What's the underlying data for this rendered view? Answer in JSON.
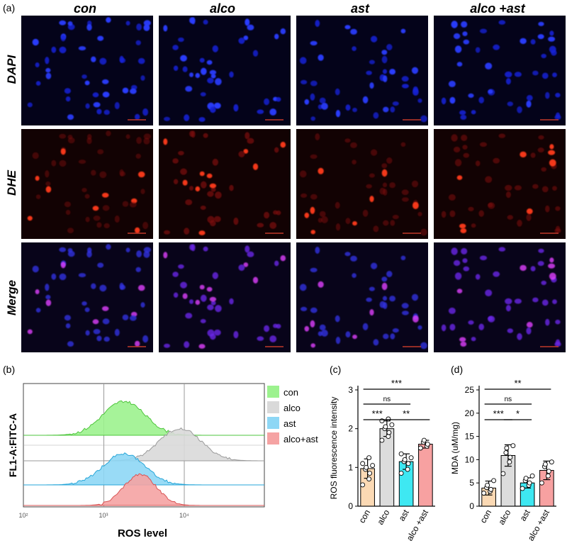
{
  "panel_a": {
    "label": "(a)",
    "columns": [
      "con",
      "alco",
      "ast",
      "alco +ast"
    ],
    "rows": [
      "DAPI",
      "DHE",
      "Merge"
    ]
  },
  "panel_b": {
    "label": "(b)",
    "ylabel": "FL1-A:FITC-A",
    "xlabel": "ROS level",
    "ticks": [
      "10²",
      "10³",
      "10⁴"
    ],
    "legend": [
      {
        "name": "con",
        "color": "#9cf28e"
      },
      {
        "name": "alco",
        "color": "#d9d9d9"
      },
      {
        "name": "ast",
        "color": "#8ed7f5"
      },
      {
        "name": "alco+ast",
        "color": "#f5a3a3"
      }
    ],
    "peaks_log10": [
      3.25,
      3.95,
      3.25,
      3.45
    ]
  },
  "chart_data": [
    {
      "type": "bar",
      "panel_label": "(c)",
      "title": "",
      "ylabel": "ROS fluorescence intensity",
      "categories": [
        "con",
        "alco",
        "ast",
        "alco +ast"
      ],
      "values": [
        0.97,
        2.0,
        1.15,
        1.6
      ],
      "errors": [
        0.25,
        0.2,
        0.2,
        0.1
      ],
      "colors": [
        "#fbd9b4",
        "#dcdcdc",
        "#3ee8f2",
        "#f7a1a1"
      ],
      "ylim": [
        0,
        3
      ],
      "yticks": [
        0,
        1,
        2,
        3
      ],
      "points": [
        [
          0.55,
          0.7,
          0.85,
          0.95,
          1.0,
          1.05,
          1.1,
          1.25
        ],
        [
          1.7,
          1.8,
          1.9,
          2.0,
          2.05,
          2.1,
          2.2,
          2.25
        ],
        [
          0.85,
          0.95,
          1.1,
          1.15,
          1.2,
          1.25,
          1.35
        ],
        [
          1.5,
          1.55,
          1.6,
          1.65,
          1.7
        ]
      ],
      "significance": [
        {
          "from": 0,
          "to": 3,
          "label": "***"
        },
        {
          "from": 0,
          "to": 2,
          "label": "ns"
        },
        {
          "from": 0,
          "to": 1,
          "label": "***"
        },
        {
          "from": 1,
          "to": 3,
          "label": "**"
        }
      ]
    },
    {
      "type": "bar",
      "panel_label": "(d)",
      "title": "",
      "ylabel": "MDA (uM/mg)",
      "categories": [
        "con",
        "alco",
        "ast",
        "alco +ast"
      ],
      "values": [
        3.9,
        10.9,
        5.0,
        7.7
      ],
      "errors": [
        1.5,
        2.3,
        1.1,
        2.0
      ],
      "colors": [
        "#fbd9b4",
        "#dcdcdc",
        "#3ee8f2",
        "#f7a1a1"
      ],
      "ylim": [
        0,
        25
      ],
      "yticks": [
        0,
        5,
        10,
        15,
        20,
        25
      ],
      "points": [
        [
          2.8,
          3.2,
          3.6,
          4.0,
          4.5,
          5.5
        ],
        [
          7.0,
          9.5,
          10.5,
          11.5,
          12.5,
          13.0
        ],
        [
          3.8,
          4.5,
          5.0,
          5.5,
          6.0,
          6.5
        ],
        [
          5.0,
          6.5,
          7.5,
          8.5,
          9.0,
          9.5
        ]
      ],
      "significance": [
        {
          "from": 0,
          "to": 3,
          "label": "**"
        },
        {
          "from": 0,
          "to": 2,
          "label": "ns"
        },
        {
          "from": 0,
          "to": 1,
          "label": "***"
        },
        {
          "from": 1,
          "to": 2,
          "label": "*"
        }
      ]
    }
  ]
}
